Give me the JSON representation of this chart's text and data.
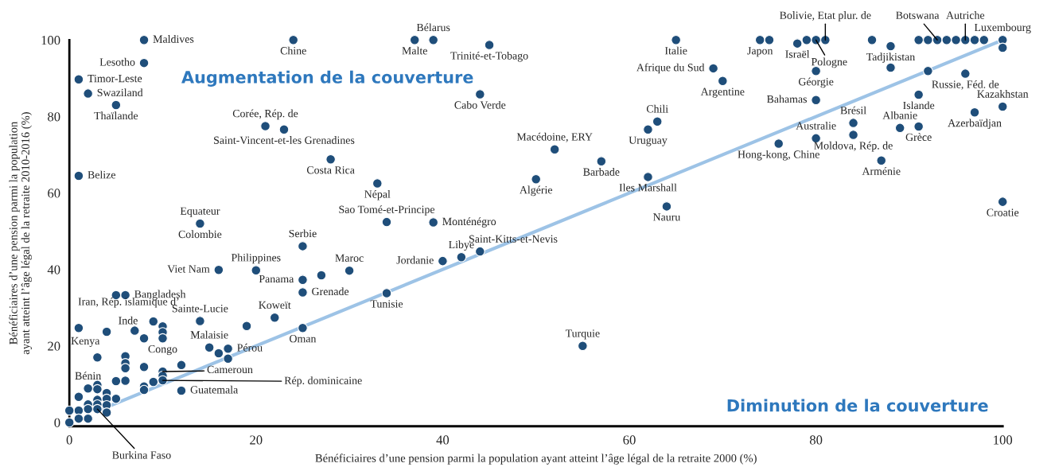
{
  "chart_data": {
    "type": "scatter",
    "xlabel": "Bénéficiaires d’une pension parmi la population ayant atteint l’âge légal de la retraite 2000 (%)",
    "ylabel": "Bénéficiaires d’une pension parmi la population\nayant atteint l’âge légal de la retraite 2010-2016 (%)",
    "xlim": [
      0,
      100
    ],
    "ylim": [
      -1,
      100
    ],
    "xticks": [
      0,
      20,
      40,
      60,
      80,
      100
    ],
    "yticks": [
      0,
      20,
      40,
      60,
      80,
      100
    ],
    "grid": false,
    "legend": false,
    "series": [
      {
        "type": "line",
        "color": "#9dc3e6",
        "line_style": "solid",
        "x": [
          3,
          100
        ],
        "values": [
          3,
          100
        ]
      },
      {
        "color": "#1f4e7a",
        "marker": "circle",
        "x": [
          8,
          24,
          8,
          1,
          2,
          5,
          21,
          23,
          28,
          33,
          1,
          14,
          39,
          37,
          45,
          44,
          52,
          57,
          50,
          62,
          34,
          39,
          62,
          63,
          30,
          27,
          40,
          42,
          44,
          34,
          55,
          25,
          25,
          16,
          20,
          25,
          25,
          6,
          5,
          1,
          4,
          7,
          9,
          8,
          10,
          10,
          10,
          14,
          19,
          22,
          15,
          16,
          17,
          17,
          10,
          10,
          10,
          12,
          12,
          9,
          8,
          8,
          8,
          6,
          6,
          6,
          6,
          5,
          3,
          3,
          3,
          2,
          1,
          5,
          4,
          4,
          4,
          4,
          3,
          3,
          3,
          2,
          2,
          2,
          1,
          1,
          0,
          0,
          65,
          74,
          75,
          78,
          79,
          80,
          81,
          69,
          70,
          80,
          80,
          86,
          88,
          88,
          92,
          91,
          92,
          93,
          94,
          95,
          96,
          97,
          98,
          100,
          100,
          96,
          91,
          100,
          97,
          84,
          84,
          89,
          91,
          80,
          76,
          87,
          64,
          100
        ],
        "values": [
          100,
          100,
          94,
          89.7,
          86,
          83,
          77.5,
          76.6,
          68.8,
          62.5,
          64.5,
          52,
          100,
          100,
          98.7,
          85.8,
          71.4,
          68.3,
          63.6,
          64.2,
          52.4,
          52.3,
          76.6,
          78.7,
          39.7,
          38.5,
          42.2,
          43.2,
          44.7,
          33.8,
          20,
          24.7,
          46.1,
          39.9,
          39.8,
          37.3,
          34,
          33.3,
          33.3,
          24.7,
          23.7,
          24,
          26.4,
          22,
          25.1,
          23.6,
          22,
          26.5,
          25.2,
          27.4,
          19.6,
          18.1,
          19.3,
          16.7,
          13.3,
          12.2,
          11,
          15,
          8.3,
          10.6,
          9.4,
          8.5,
          14.5,
          17.3,
          15.5,
          14.2,
          10.9,
          10.8,
          17,
          9.8,
          8.7,
          8.9,
          6.7,
          6.2,
          7.7,
          6.2,
          4.5,
          2.6,
          5.9,
          4.7,
          3.5,
          4.7,
          3.5,
          1,
          3.1,
          1,
          3.1,
          0,
          100,
          100,
          100,
          99.1,
          100,
          100,
          100,
          92.6,
          89.3,
          91.9,
          84.3,
          100,
          98.4,
          92.8,
          91.9,
          100,
          100,
          100,
          100,
          100,
          100,
          100,
          100,
          100,
          98,
          91.2,
          85.7,
          82.6,
          81.1,
          78.3,
          75.2,
          77,
          77.4,
          74.3,
          72.9,
          68.5,
          56.5,
          57.7
        ]
      }
    ],
    "annotations": [
      "Augmentation de la couverture",
      "Diminution de la couverture",
      {
        "text": "Maldives",
        "x": 8,
        "y": 100
      },
      {
        "text": "Chine",
        "x": 24,
        "y": 100
      },
      {
        "text": "Lesotho",
        "x": 8,
        "y": 94
      },
      {
        "text": "Timor-Leste",
        "x": 1,
        "y": 89.7
      },
      {
        "text": "Swaziland",
        "x": 2,
        "y": 86
      },
      {
        "text": "Thaïlande",
        "x": 5,
        "y": 83
      },
      {
        "text": "Corée, Rép. de",
        "x": 21,
        "y": 77.5
      },
      {
        "text": "Saint-Vincent-et-les Grenadines",
        "x": 23,
        "y": 76.6
      },
      {
        "text": "Costa Rica",
        "x": 28,
        "y": 68.8
      },
      {
        "text": "Népal",
        "x": 33,
        "y": 62.5
      },
      {
        "text": "Belize",
        "x": 1,
        "y": 64.5
      },
      {
        "text": "Equateur",
        "x": 14,
        "y": 52
      },
      {
        "text": "Colombie",
        "x": 14,
        "y": 52
      },
      {
        "text": "Bélarus",
        "x": 39,
        "y": 100
      },
      {
        "text": "Malte",
        "x": 37,
        "y": 100
      },
      {
        "text": "Trinité-et-Tobago",
        "x": 45,
        "y": 98.7
      },
      {
        "text": "Cabo Verde",
        "x": 44,
        "y": 85.8
      },
      {
        "text": "Macédoine, ERY",
        "x": 52,
        "y": 71.4
      },
      {
        "text": "Barbade",
        "x": 57,
        "y": 68.3
      },
      {
        "text": "Algérie",
        "x": 50,
        "y": 63.6
      },
      {
        "text": "Iles Marshall",
        "x": 62,
        "y": 64.2
      },
      {
        "text": "Sao Tomé-et-Principe",
        "x": 34,
        "y": 52.4
      },
      {
        "text": "Monténégro",
        "x": 39,
        "y": 52.3
      },
      {
        "text": "Uruguay",
        "x": 62,
        "y": 76.6
      },
      {
        "text": "Chili",
        "x": 63,
        "y": 78.7
      },
      {
        "text": "Maroc",
        "x": 30,
        "y": 39.7
      },
      {
        "text": "Jordanie",
        "x": 40,
        "y": 42.2
      },
      {
        "text": "Libye",
        "x": 42,
        "y": 43.2
      },
      {
        "text": "Saint-Kitts-et-Nevis",
        "x": 44,
        "y": 44.7
      },
      {
        "text": "Tunisie",
        "x": 34,
        "y": 33.8
      },
      {
        "text": "Turquie",
        "x": 55,
        "y": 20
      },
      {
        "text": "Oman",
        "x": 25,
        "y": 24.7
      },
      {
        "text": "Serbie",
        "x": 25,
        "y": 46.1
      },
      {
        "text": "Viet Nam",
        "x": 16,
        "y": 39.9
      },
      {
        "text": "Philippines",
        "x": 20,
        "y": 39.8
      },
      {
        "text": "Panama",
        "x": 25,
        "y": 37.3
      },
      {
        "text": "Grenade",
        "x": 25,
        "y": 34
      },
      {
        "text": "Bangladesh",
        "x": 6,
        "y": 33.3
      },
      {
        "text": "Kenya",
        "x": 1,
        "y": 24.7
      },
      {
        "text": "Iran, Rép. islamique d’",
        "x": 4,
        "y": 23.7
      },
      {
        "text": "Inde",
        "x": 9,
        "y": 26.4
      },
      {
        "text": "Congo",
        "x": 10,
        "y": 22
      },
      {
        "text": "Sainte-Lucie",
        "x": 14,
        "y": 26.5
      },
      {
        "text": "Koweït",
        "x": 22,
        "y": 27.4
      },
      {
        "text": "Malaisie",
        "x": 15,
        "y": 19.6
      },
      {
        "text": "Pérou",
        "x": 17,
        "y": 19.3
      },
      {
        "text": "Cameroun",
        "x": 10,
        "y": 13.3
      },
      {
        "text": "Rép. dominicaine",
        "x": 10,
        "y": 11
      },
      {
        "text": "Guatemala",
        "x": 12,
        "y": 8.3
      },
      {
        "text": "Bénin",
        "x": 2,
        "y": 8.9
      },
      {
        "text": "Burkina Faso",
        "x": 3,
        "y": 3.5
      },
      {
        "text": "Italie",
        "x": 65,
        "y": 100
      },
      {
        "text": "Japon",
        "x": 74,
        "y": 100
      },
      {
        "text": "Israël",
        "x": 78,
        "y": 99.1
      },
      {
        "text": "Pologne",
        "x": 80,
        "y": 100
      },
      {
        "text": "Bolivie, Etat plur. de",
        "x": 81,
        "y": 100
      },
      {
        "text": "Afrique du Sud",
        "x": 69,
        "y": 92.6
      },
      {
        "text": "Argentine",
        "x": 70,
        "y": 89.3
      },
      {
        "text": "Géorgie",
        "x": 80,
        "y": 91.9
      },
      {
        "text": "Bahamas",
        "x": 80,
        "y": 84.3
      },
      {
        "text": "Tadjikistan",
        "x": 88,
        "y": 98.4
      },
      {
        "text": "Botswana",
        "x": 93,
        "y": 100
      },
      {
        "text": "Autriche",
        "x": 96,
        "y": 100
      },
      {
        "text": "Luxembourg",
        "x": 100,
        "y": 100
      },
      {
        "text": "Russie, Féd. de",
        "x": 96,
        "y": 91.2
      },
      {
        "text": "Kazakhstan",
        "x": 100,
        "y": 82.6
      },
      {
        "text": "Islande",
        "x": 91,
        "y": 85.7
      },
      {
        "text": "Azerbaïdjan",
        "x": 97,
        "y": 81.1
      },
      {
        "text": "Brésil",
        "x": 84,
        "y": 78.3
      },
      {
        "text": "Moldova, Rép. de",
        "x": 84,
        "y": 75.2
      },
      {
        "text": "Albanie",
        "x": 89,
        "y": 77
      },
      {
        "text": "Grèce",
        "x": 91,
        "y": 77.4
      },
      {
        "text": "Australie",
        "x": 80,
        "y": 74.3
      },
      {
        "text": "Hong-kong, Chine",
        "x": 76,
        "y": 72.9
      },
      {
        "text": "Arménie",
        "x": 87,
        "y": 68.5
      },
      {
        "text": "Nauru",
        "x": 64,
        "y": 56.5
      },
      {
        "text": "Croatie",
        "x": 100,
        "y": 57.7
      }
    ]
  }
}
